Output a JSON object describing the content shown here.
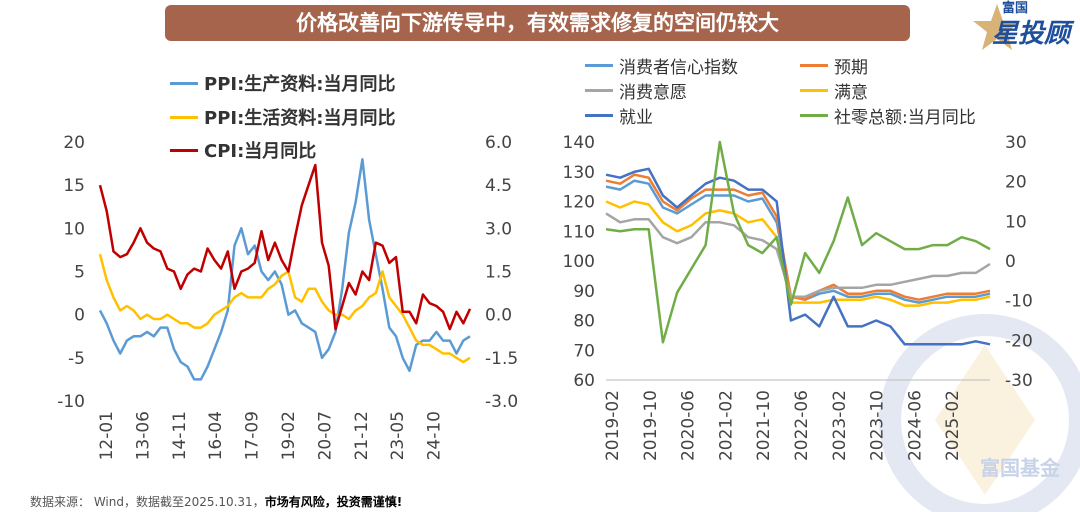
{
  "title": "价格改善向下游传导中，有效需求修复的空间仍较大",
  "logo": {
    "top": "富国",
    "main": "星投顾",
    "watermark": "富国基金"
  },
  "footer": {
    "source": "数据来源： Wind，数据截至2025.10.31，",
    "warning": "市场有风险，投资需谨慎!"
  },
  "chart_data": [
    {
      "type": "line",
      "title": "",
      "left_ylim": [
        -10,
        20
      ],
      "right_ylim": [
        -3,
        6
      ],
      "left_yticks": [
        "20",
        "15",
        "10",
        "5",
        "0",
        "-5",
        "-10"
      ],
      "right_yticks": [
        "6.0",
        "4.5",
        "3.0",
        "1.5",
        "0.0",
        "-1.5",
        "-3.0"
      ],
      "xticks": [
        "12-01",
        "13-06",
        "14-11",
        "16-04",
        "17-09",
        "19-02",
        "20-07",
        "21-12",
        "23-05",
        "24-10"
      ],
      "x_start": "2012-01",
      "x_step_months": 3,
      "series": [
        {
          "name": "PPI:生产资料:当月同比",
          "color": "#5b9bd5",
          "axis": "left",
          "values": [
            0.5,
            -1,
            -3,
            -4.5,
            -3,
            -2.5,
            -2.5,
            -2,
            -2.5,
            -1.5,
            -1.5,
            -4,
            -5.5,
            -6,
            -7.5,
            -7.5,
            -6,
            -4,
            -2,
            0.5,
            8,
            10,
            7,
            8,
            5,
            4,
            5,
            3.5,
            0,
            0.5,
            -1,
            -1.5,
            -2,
            -5,
            -4,
            -2,
            3,
            9.5,
            13,
            18,
            11,
            7,
            3,
            -1.5,
            -2.5,
            -5,
            -6.5,
            -3.5,
            -3,
            -3,
            -2,
            -3,
            -3,
            -4.5,
            -3,
            -2.5
          ]
        },
        {
          "name": "PPI:生活资料:当月同比",
          "color": "#ffc000",
          "axis": "left",
          "values": [
            7,
            4,
            2,
            0.5,
            1,
            0.5,
            -0.5,
            0,
            -0.5,
            -0.5,
            0,
            -0.5,
            -1,
            -1,
            -1.5,
            -1.5,
            -1,
            0,
            0.5,
            1,
            2,
            2.5,
            2,
            2,
            2,
            3,
            3.5,
            4.5,
            5,
            2,
            1.5,
            3,
            3,
            1.5,
            0.5,
            0,
            0,
            -0.5,
            0.5,
            1,
            2,
            2.5,
            5,
            2,
            1,
            0,
            -1.5,
            -3,
            -3.5,
            -3.5,
            -4,
            -4.5,
            -4.5,
            -5,
            -5.5,
            -5
          ]
        },
        {
          "name": "CPI:当月同比",
          "color": "#c00000",
          "axis": "right",
          "values": [
            4.5,
            3.6,
            2.2,
            2.0,
            2.1,
            2.5,
            3.0,
            2.5,
            2.3,
            2.2,
            1.6,
            1.5,
            0.9,
            1.4,
            1.6,
            1.5,
            2.3,
            1.9,
            1.6,
            2.2,
            0.9,
            1.5,
            1.6,
            1.8,
            2.9,
            1.9,
            2.5,
            1.9,
            1.5,
            2.7,
            3.8,
            4.5,
            5.2,
            2.5,
            1.7,
            -0.5,
            0.3,
            1.1,
            0.7,
            1.5,
            1.2,
            2.5,
            2.4,
            1.8,
            2.0,
            0.1,
            0.1,
            -0.3,
            0.7,
            0.4,
            0.3,
            0.1,
            -0.5,
            0.1,
            -0.3,
            0.2
          ]
        }
      ]
    },
    {
      "type": "line",
      "title": "",
      "left_ylim": [
        60,
        140
      ],
      "right_ylim": [
        -30,
        30
      ],
      "left_yticks": [
        "140",
        "130",
        "120",
        "110",
        "100",
        "90",
        "80",
        "70",
        "60"
      ],
      "right_yticks": [
        "30",
        "20",
        "10",
        "0",
        "-10",
        "-20",
        "-30"
      ],
      "xticks": [
        "2019-02",
        "2019-10",
        "2020-06",
        "2021-02",
        "2021-10",
        "2022-06",
        "2023-02",
        "2023-10",
        "2024-06",
        "2025-02"
      ],
      "x_start": "2019-02",
      "x_step_months": 3,
      "series": [
        {
          "name": "消费者信心指数",
          "color": "#5b9bd5",
          "axis": "left",
          "values": [
            125,
            124,
            127,
            126,
            118,
            116,
            119,
            122,
            122,
            122,
            120,
            121,
            113,
            88,
            87,
            89,
            90,
            88,
            88,
            89,
            89,
            87,
            86,
            87,
            88,
            88,
            88,
            89
          ]
        },
        {
          "name": "预期",
          "color": "#ed7d31",
          "axis": "left",
          "values": [
            127,
            126,
            129,
            128,
            120,
            117,
            121,
            124,
            124,
            124,
            122,
            123,
            115,
            88,
            87,
            90,
            92,
            89,
            89,
            90,
            90,
            88,
            87,
            88,
            89,
            89,
            89,
            90
          ]
        },
        {
          "name": "消费意愿",
          "color": "#a5a5a5",
          "axis": "left",
          "values": [
            116,
            113,
            114,
            114,
            108,
            106,
            108,
            113,
            113,
            112,
            108,
            107,
            104,
            88,
            88,
            90,
            91,
            91,
            91,
            92,
            92,
            93,
            94,
            95,
            95,
            96,
            96,
            99
          ]
        },
        {
          "name": "满意",
          "color": "#ffc000",
          "axis": "left",
          "values": [
            120,
            118,
            120,
            119,
            113,
            110,
            112,
            116,
            117,
            116,
            113,
            114,
            108,
            86,
            86,
            86,
            87,
            87,
            87,
            88,
            87,
            85,
            85,
            86,
            86,
            87,
            87,
            88
          ]
        },
        {
          "name": "就业",
          "color": "#4472c4",
          "axis": "left",
          "values": [
            129,
            128,
            130,
            131,
            122,
            118,
            122,
            126,
            128,
            127,
            124,
            124,
            120,
            80,
            82,
            78,
            88,
            78,
            78,
            80,
            78,
            72,
            72,
            72,
            72,
            72,
            73,
            72
          ]
        },
        {
          "name": "社零总额:当月同比",
          "color": "#70ad47",
          "axis": "right",
          "values": [
            8,
            7.5,
            8,
            8,
            -20.5,
            -8,
            -2,
            4,
            34,
            12,
            4,
            2,
            6,
            -11,
            2,
            -3,
            5,
            16,
            4,
            7,
            5,
            3,
            3,
            4,
            4,
            6,
            5,
            3
          ]
        }
      ]
    }
  ]
}
